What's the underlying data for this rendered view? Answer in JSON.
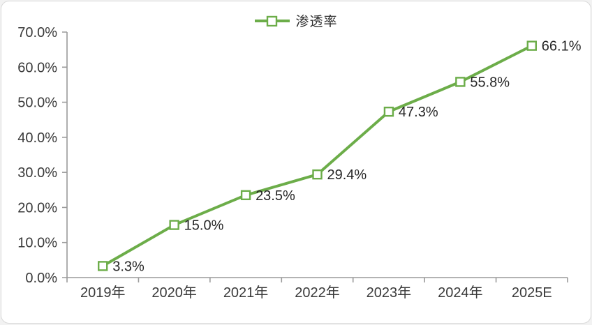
{
  "chart_data": {
    "type": "line",
    "title": "",
    "legend": {
      "label": "渗透率",
      "position": "top"
    },
    "categories": [
      "2019年",
      "2020年",
      "2021年",
      "2022年",
      "2023年",
      "2024年",
      "2025E"
    ],
    "series": [
      {
        "name": "渗透率",
        "values": [
          3.3,
          15.0,
          23.5,
          29.4,
          47.3,
          55.8,
          66.1
        ],
        "data_labels": [
          "3.3%",
          "15.0%",
          "23.5%",
          "29.4%",
          "47.3%",
          "55.8%",
          "66.1%"
        ],
        "color": "#6cad49",
        "marker": "hollow-square"
      }
    ],
    "y_axis": {
      "min": 0,
      "max": 70,
      "step": 10,
      "tick_labels": [
        "0.0%",
        "10.0%",
        "20.0%",
        "30.0%",
        "40.0%",
        "50.0%",
        "60.0%",
        "70.0%"
      ]
    },
    "x_axis_label": "",
    "y_axis_label": "",
    "grid": false,
    "colors": {
      "line": "#6cad49",
      "marker_fill": "#ffffff",
      "axis": "#9a9a9a",
      "axis_text": "#3a3a3a",
      "label_text": "#262626",
      "card_border": "#d9d9d9",
      "background": "#ffffff"
    }
  }
}
